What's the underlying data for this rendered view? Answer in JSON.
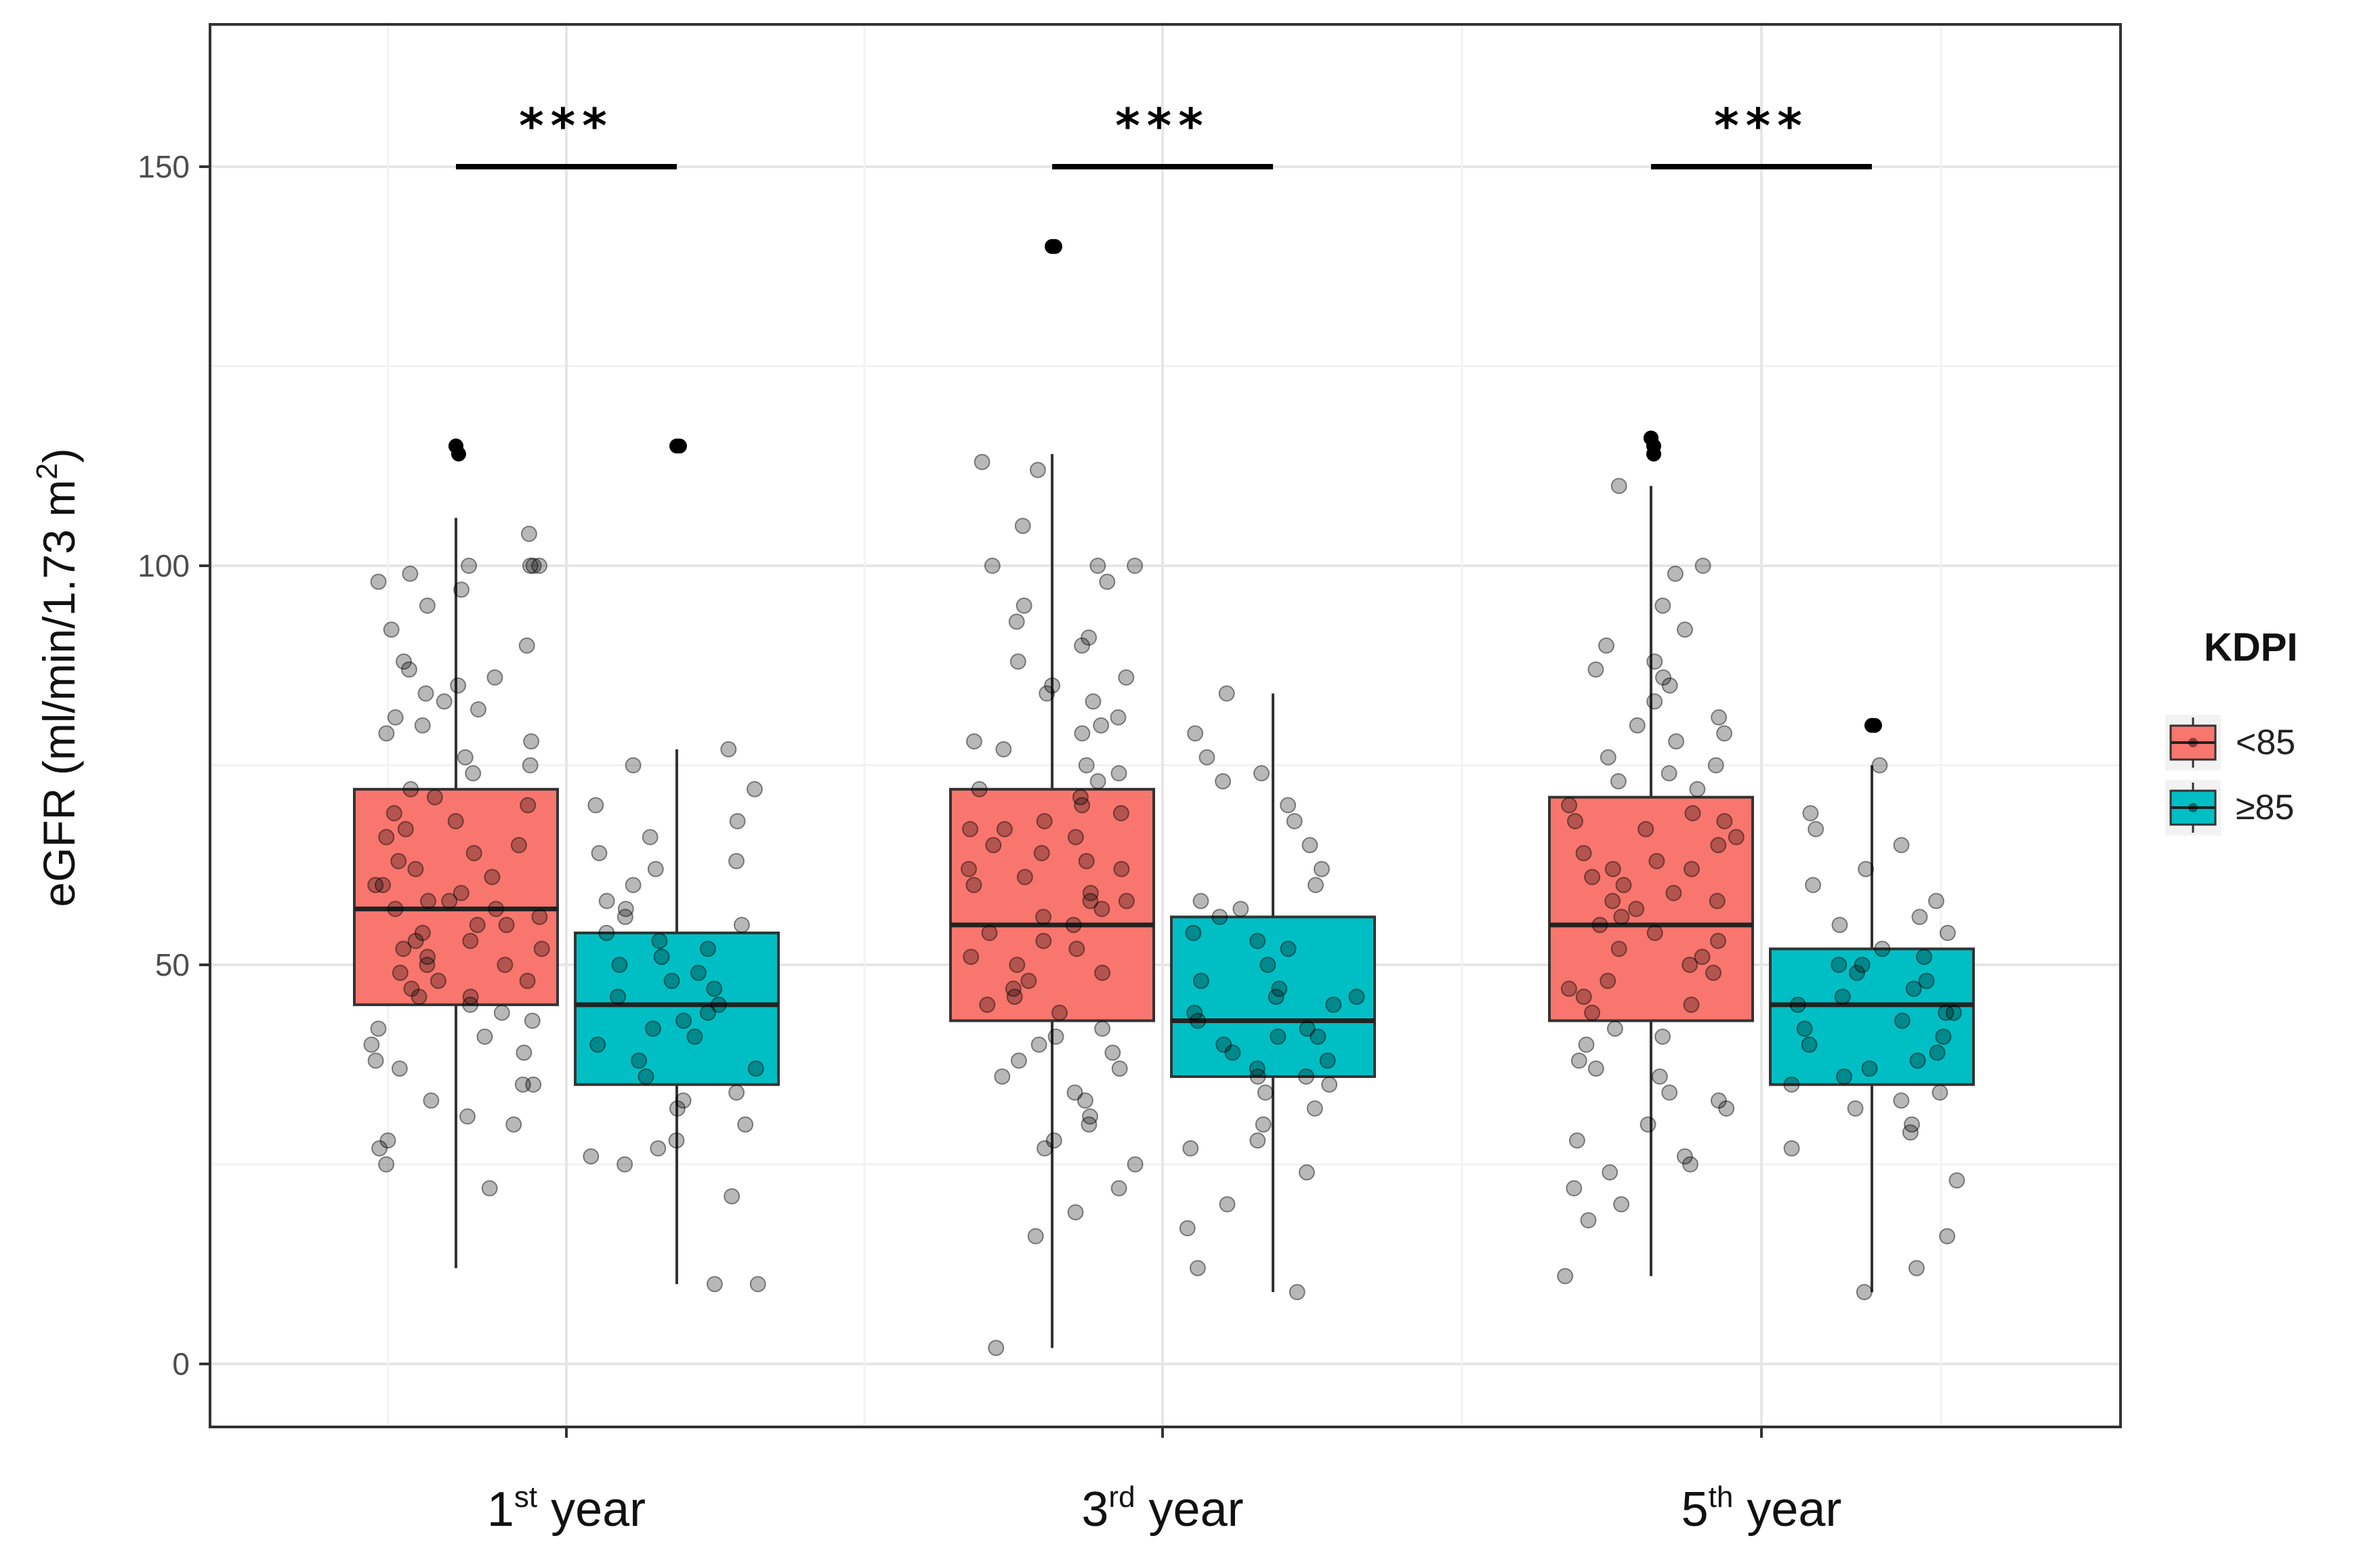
{
  "chart_data": {
    "type": "box",
    "title": "",
    "xlabel": "",
    "ylabel": "eGFR (ml/min/1.73 m²)",
    "ylabel_parts": {
      "main": "eGFR (ml/min/1.73 m",
      "sup": "2",
      "tail": ")"
    },
    "ylim": [
      -7,
      168
    ],
    "yticks": [
      0,
      50,
      100,
      150
    ],
    "ytick_labels": [
      "0",
      "50",
      "100",
      "150"
    ],
    "grid": true,
    "legend": {
      "title": "KDPI",
      "position": "right",
      "entries": [
        {
          "label": "<85",
          "color": "#F8766D"
        },
        {
          "label": "≥85",
          "color": "#00BFC4"
        }
      ]
    },
    "categories": [
      {
        "label": "1st year",
        "num": "1",
        "sup": "st",
        "rest": " year"
      },
      {
        "label": "3rd year",
        "num": "3",
        "sup": "rd",
        "rest": " year"
      },
      {
        "label": "5th year",
        "num": "5",
        "sup": "th",
        "rest": " year"
      }
    ],
    "series": [
      {
        "name": "<85",
        "color": "#F8766D",
        "boxes": [
          {
            "category": "1st year",
            "whisker_low": 12,
            "q1": 45,
            "median": 57,
            "q3": 72,
            "whisker_high": 106,
            "outliers": [
              115,
              114,
              115
            ],
            "points": [
              25,
              30,
              35,
              38,
              40,
              42,
              44,
              46,
              48,
              50,
              50,
              52,
              53,
              55,
              56,
              57,
              58,
              60,
              62,
              63,
              65,
              67,
              70,
              72,
              75,
              78,
              80,
              82,
              85,
              88,
              90,
              95,
              100,
              100,
              100,
              98,
              104,
              35,
              33,
              28,
              22,
              45,
              47,
              49,
              52,
              54,
              59,
              61,
              64,
              68,
              71,
              74,
              84,
              86,
              92,
              97,
              27,
              31,
              37,
              41,
              43,
              51,
              55,
              58,
              66,
              69,
              76,
              79,
              81,
              83,
              87,
              99,
              100,
              60,
              57,
              53,
              48,
              46,
              39
            ]
          },
          {
            "category": "3rd year",
            "whisker_low": 2,
            "q1": 43,
            "median": 55,
            "q3": 72,
            "whisker_high": 114,
            "outliers": [
              140,
              140
            ],
            "points": [
              2,
              16,
              19,
              22,
              25,
              28,
              30,
              33,
              36,
              38,
              40,
              42,
              44,
              46,
              48,
              50,
              52,
              54,
              56,
              58,
              60,
              62,
              64,
              66,
              68,
              70,
              72,
              75,
              78,
              80,
              83,
              86,
              90,
              95,
              100,
              100,
              100,
              105,
              112,
              113,
              45,
              47,
              49,
              51,
              53,
              57,
              59,
              61,
              63,
              65,
              67,
              69,
              71,
              74,
              77,
              81,
              84,
              88,
              93,
              98,
              34,
              37,
              41,
              55,
              58,
              62,
              67,
              73,
              79,
              85,
              91,
              27,
              31,
              39
            ]
          },
          {
            "category": "5th year",
            "whisker_low": 11,
            "q1": 43,
            "median": 55,
            "q3": 71,
            "whisker_high": 110,
            "outliers": [
              116,
              115,
              116,
              114
            ],
            "points": [
              11,
              18,
              20,
              24,
              25,
              28,
              32,
              34,
              36,
              38,
              40,
              42,
              44,
              46,
              48,
              50,
              52,
              54,
              56,
              58,
              60,
              62,
              64,
              66,
              68,
              70,
              72,
              75,
              78,
              80,
              83,
              86,
              90,
              95,
              99,
              100,
              110,
              45,
              47,
              49,
              51,
              53,
              57,
              59,
              61,
              63,
              65,
              67,
              69,
              73,
              76,
              79,
              85,
              88,
              92,
              33,
              37,
              41,
              55,
              58,
              62,
              68,
              74,
              81,
              87,
              30,
              26,
              22
            ]
          }
        ]
      },
      {
        "name": "≥85",
        "color": "#00BFC4",
        "boxes": [
          {
            "category": "1st year",
            "whisker_low": 10,
            "q1": 35,
            "median": 45,
            "q3": 54,
            "whisker_high": 77,
            "outliers": [
              115,
              115
            ],
            "points": [
              10,
              10,
              21,
              25,
              26,
              28,
              30,
              32,
              34,
              36,
              38,
              40,
              42,
              43,
              44,
              45,
              46,
              47,
              48,
              50,
              51,
              52,
              54,
              55,
              56,
              58,
              60,
              62,
              63,
              66,
              68,
              70,
              72,
              75,
              77,
              27,
              33,
              37,
              41,
              49,
              53,
              57,
              64
            ]
          },
          {
            "category": "3rd year",
            "whisker_low": 9,
            "q1": 36,
            "median": 43,
            "q3": 56,
            "whisker_high": 84,
            "outliers": [],
            "points": [
              9,
              12,
              17,
              20,
              24,
              27,
              28,
              30,
              32,
              34,
              35,
              36,
              37,
              38,
              39,
              40,
              41,
              42,
              43,
              44,
              45,
              46,
              47,
              48,
              50,
              52,
              54,
              56,
              58,
              60,
              62,
              65,
              68,
              70,
              73,
              74,
              76,
              79,
              84,
              36,
              41,
              46,
              53,
              57
            ]
          },
          {
            "category": "5th year",
            "whisker_low": 9,
            "q1": 35,
            "median": 45,
            "q3": 52,
            "whisker_high": 75,
            "outliers": [
              80,
              80
            ],
            "points": [
              9,
              12,
              16,
              23,
              27,
              29,
              30,
              32,
              34,
              35,
              36,
              37,
              38,
              40,
              41,
              42,
              43,
              44,
              45,
              46,
              47,
              48,
              49,
              50,
              51,
              52,
              54,
              56,
              58,
              60,
              62,
              65,
              67,
              69,
              75,
              33,
              39,
              44,
              50,
              55
            ]
          }
        ]
      }
    ],
    "annotations": [
      {
        "category": "1st year",
        "text": "***",
        "y": 150
      },
      {
        "category": "3rd year",
        "text": "***",
        "y": 150
      },
      {
        "category": "5th year",
        "text": "***",
        "y": 150
      }
    ]
  }
}
